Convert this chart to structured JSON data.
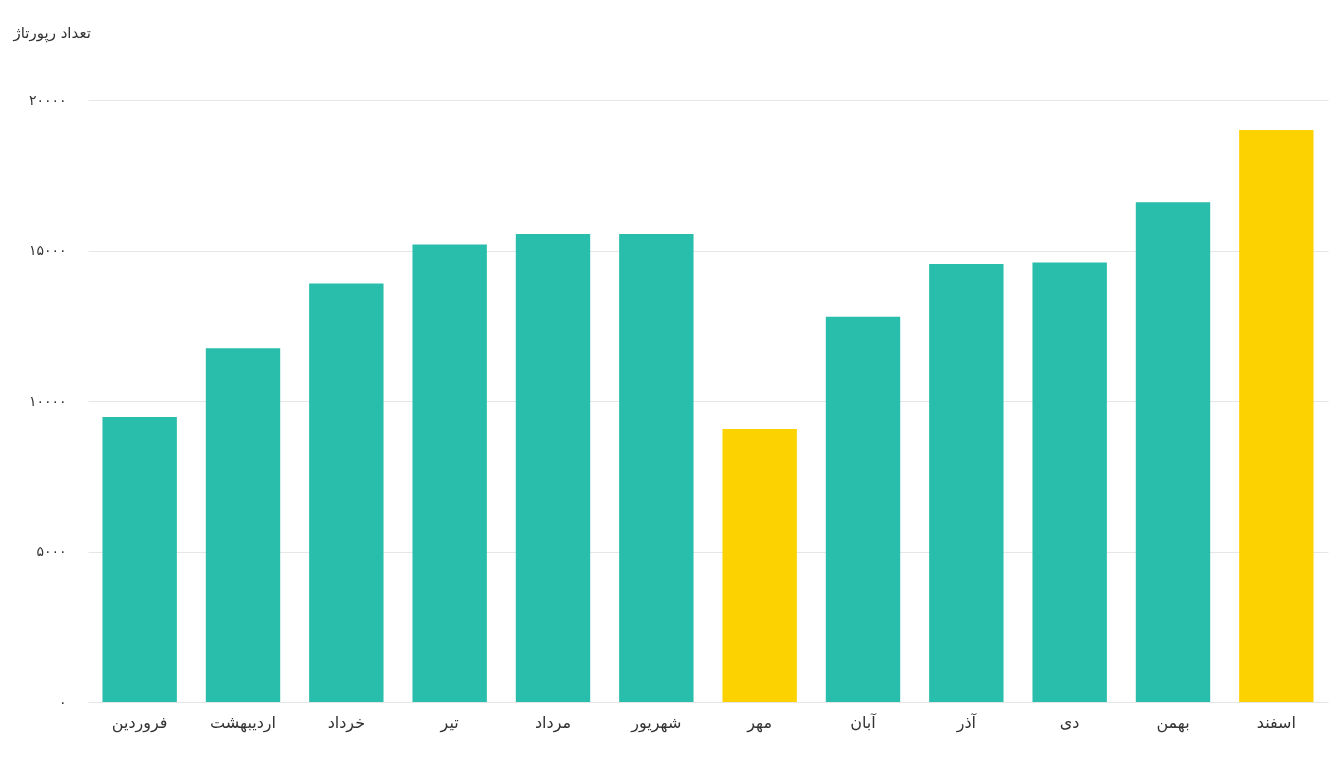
{
  "chart_data": {
    "type": "bar",
    "ylabel": "تعداد رپورتاژ",
    "categories": [
      "فروردین",
      "اردیبهشت",
      "خرداد",
      "تیر",
      "مرداد",
      "شهریور",
      "مهر",
      "آبان",
      "آذر",
      "دی",
      "بهمن",
      "اسفند"
    ],
    "values": [
      9470,
      11750,
      13900,
      15200,
      15550,
      15550,
      9070,
      12800,
      14550,
      14600,
      16600,
      19000
    ],
    "colors": [
      "#29bdab",
      "#29bdab",
      "#29bdab",
      "#29bdab",
      "#29bdab",
      "#29bdab",
      "#fcd200",
      "#29bdab",
      "#29bdab",
      "#29bdab",
      "#29bdab",
      "#fcd200"
    ],
    "ylim": [
      0,
      20000
    ],
    "yticks": [
      {
        "value": 0,
        "label": "۰"
      },
      {
        "value": 5000,
        "label": "۵۰۰۰"
      },
      {
        "value": 10000,
        "label": "۱۰۰۰۰"
      },
      {
        "value": 15000,
        "label": "۱۵۰۰۰"
      },
      {
        "value": 20000,
        "label": "۲۰۰۰۰"
      }
    ],
    "grid": "y"
  }
}
